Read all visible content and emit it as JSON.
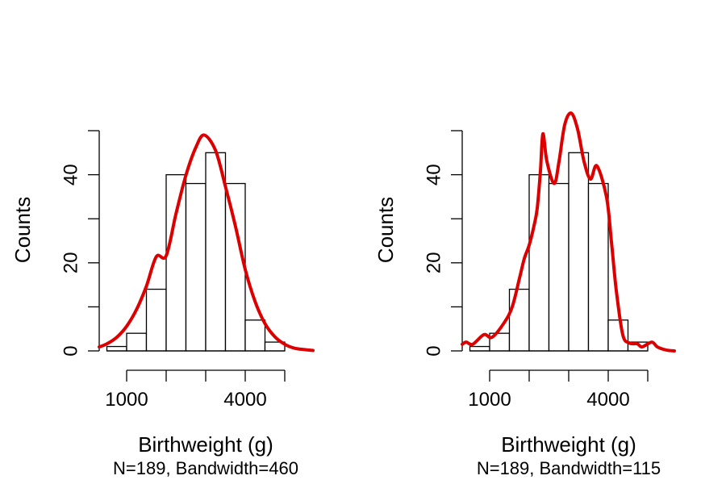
{
  "chart_data": [
    {
      "type": "bar",
      "subtype": "histogram-with-density",
      "title": "",
      "xlabel": "Birthweight (g)",
      "subtitle": "N=189, Bandwidth=460",
      "ylabel": "Counts",
      "xlim": [
        0,
        6000
      ],
      "ylim": [
        0,
        50
      ],
      "x_ticks": [
        1000,
        2000,
        3000,
        4000,
        5000
      ],
      "x_tick_labels": [
        "1000",
        "",
        "",
        "4000",
        ""
      ],
      "y_ticks": [
        0,
        10,
        20,
        30,
        40,
        50
      ],
      "y_tick_labels": [
        "0",
        "",
        "20",
        "",
        "40",
        ""
      ],
      "grid": false,
      "bins": {
        "edges": [
          500,
          1000,
          1500,
          2000,
          2500,
          3000,
          3500,
          4000,
          4500,
          5000
        ],
        "counts": [
          1,
          4,
          14,
          40,
          38,
          45,
          38,
          7,
          2
        ]
      },
      "density_color": "#dd0000",
      "density_curve": {
        "x": [
          306,
          500,
          750,
          1000,
          1250,
          1500,
          1750,
          2000,
          2250,
          2500,
          2750,
          2960,
          3250,
          3500,
          3750,
          4000,
          4250,
          4500,
          4750,
          5000,
          5250,
          5500,
          5714
        ],
        "y": [
          0.9,
          1.6,
          3.1,
          5.6,
          9.4,
          14.7,
          21.4,
          21.6,
          31.2,
          39.9,
          46.2,
          49.0,
          45.5,
          37.3,
          28.4,
          18.5,
          11.2,
          6.2,
          3.2,
          1.5,
          0.6,
          0.3,
          0.1
        ]
      }
    },
    {
      "type": "bar",
      "subtype": "histogram-with-density",
      "title": "",
      "xlabel": "Birthweight (g)",
      "subtitle": "N=189, Bandwidth=115",
      "ylabel": "Counts",
      "xlim": [
        0,
        6000
      ],
      "ylim": [
        0,
        50
      ],
      "x_ticks": [
        1000,
        2000,
        3000,
        4000,
        5000
      ],
      "x_tick_labels": [
        "1000",
        "",
        "",
        "4000",
        ""
      ],
      "y_ticks": [
        0,
        10,
        20,
        30,
        40,
        50
      ],
      "y_tick_labels": [
        "0",
        "",
        "20",
        "",
        "40",
        ""
      ],
      "grid": false,
      "bins": {
        "edges": [
          500,
          1000,
          1500,
          2000,
          2500,
          3000,
          3500,
          4000,
          4500,
          5000
        ],
        "counts": [
          1,
          4,
          14,
          40,
          38,
          45,
          38,
          7,
          2
        ]
      },
      "density_color": "#dd0000",
      "density_curve": {
        "x": [
          306,
          408,
          571,
          857,
          1061,
          1367,
          1571,
          1755,
          1878,
          2000,
          2122,
          2204,
          2286,
          2347,
          2449,
          2633,
          2755,
          2898,
          3061,
          3224,
          3388,
          3551,
          3714,
          3959,
          4082,
          4204,
          4367,
          4531,
          4735,
          4857,
          5102,
          5245,
          5469,
          5673
        ],
        "y": [
          1.5,
          2.0,
          1.5,
          3.7,
          3.1,
          6.4,
          10,
          16.5,
          21,
          24,
          28.4,
          32.4,
          41,
          49.3,
          43,
          38,
          43,
          51.3,
          54,
          50.4,
          43,
          39,
          42,
          34.8,
          24.7,
          13.7,
          3.7,
          1.8,
          1.6,
          0.9,
          2.0,
          0.9,
          0.2,
          0
        ]
      }
    }
  ]
}
